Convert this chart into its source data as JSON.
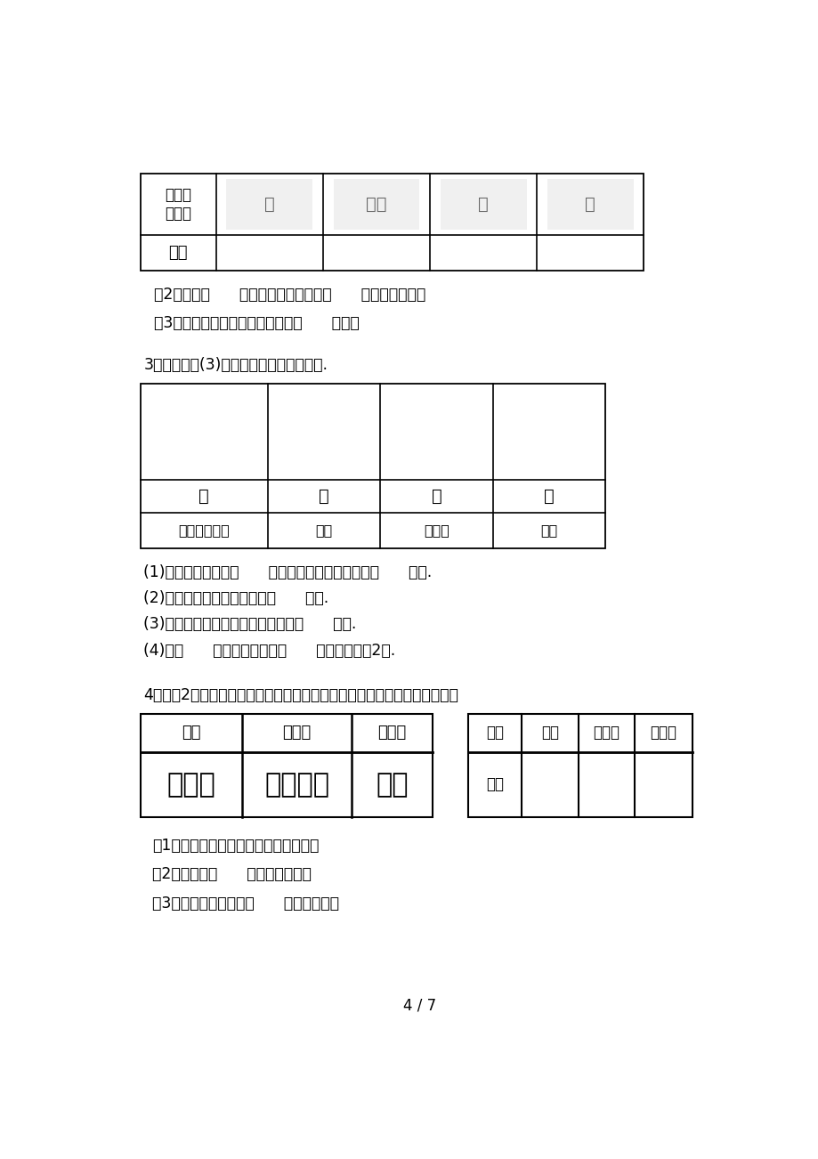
{
  "bg_color": "#ffffff",
  "section1": {
    "q2": "（2）喜欢（      ）的人数最多，喜欢（      ）的人数最少。",
    "q3": "（3）喜欢小猴的比喜欢小狗的多（      ）人。"
  },
  "section2": {
    "intro": "3、下面是二(3)班同学出生季节统计情况.",
    "seasons": [
      "春",
      "夏",
      "秋",
      "冬"
    ],
    "tally": [
      "正正正正正博",
      "正正",
      "正正博",
      "正博"
    ],
    "q1": "(1)在秋季出生的有（      ）人，比在春季出生的少（      ）人.",
    "q2": "(2)在春季和冬季出生的共有（      ）人.",
    "q3": "(3)在秋季出生的比在冬季出生的多（      ）人.",
    "q4": "(4)在（      ）季出生的比在（      ）季出生的多2人."
  },
  "section3": {
    "intro": "4、二（2）班竞选班长，三位候选人的得票情况如下。（每人只能投一票）",
    "left_headers": [
      "于东",
      "王小天",
      "马莉莉"
    ],
    "tally_yu": "正正博",
    "tally_wang": "正正正正",
    "tally_ma": "正博",
    "right_headers": [
      "姓名",
      "于东",
      "王小天",
      "马莉莉"
    ],
    "q1": "（1）请把投票结果填入上面的统计表。",
    "q2": "（2）一共有（      ）人参加投票。",
    "q3": "（3）根据统计结果，（      ）当选班长。"
  },
  "page_num": "4 / 7"
}
